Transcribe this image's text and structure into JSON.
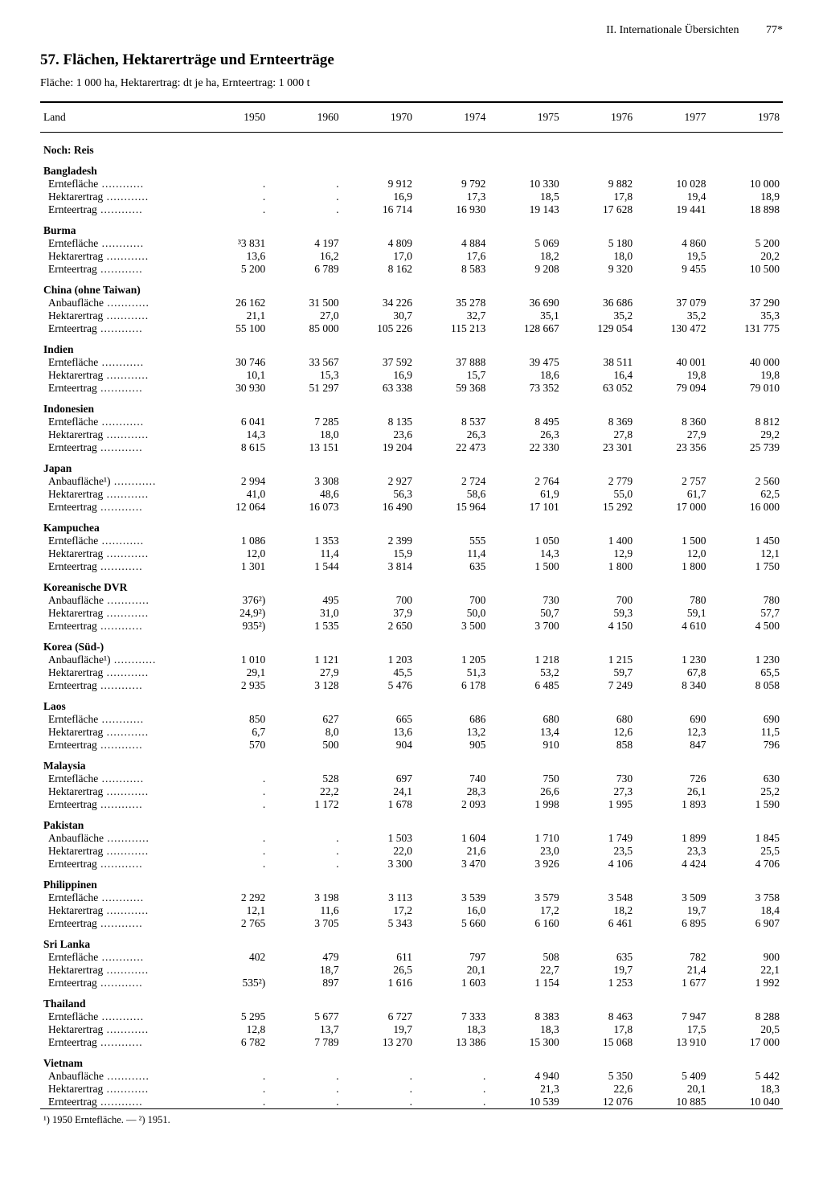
{
  "header": {
    "section": "II. Internationale Übersichten",
    "page": "77*"
  },
  "title": "57. Flächen, Hektarerträge und Ernteerträge",
  "subtitle": "Fläche: 1 000 ha, Hektarertrag: dt je ha, Ernteertrag: 1 000 t",
  "colhead": "Land",
  "years": [
    "1950",
    "1960",
    "1970",
    "1974",
    "1975",
    "1976",
    "1977",
    "1978"
  ],
  "section_label": "Noch: Reis",
  "metrics": {
    "ernteflaeche": "Erntefläche",
    "hektarertrag": "Hektarertrag",
    "ernteertrag": "Ernteertrag",
    "anbauflaeche": "Anbaufläche",
    "anbauflaeche1": "Anbaufläche¹)"
  },
  "footnote": "¹) 1950 Erntefläche. — ²) 1951.",
  "countries": [
    {
      "name": "Bangladesh",
      "rows": [
        {
          "m": "ernteflaeche",
          "v": [
            ".",
            ".",
            "9 912",
            "9 792",
            "10 330",
            "9 882",
            "10 028",
            "10 000"
          ]
        },
        {
          "m": "hektarertrag",
          "v": [
            ".",
            ".",
            "16,9",
            "17,3",
            "18,5",
            "17,8",
            "19,4",
            "18,9"
          ]
        },
        {
          "m": "ernteertrag",
          "v": [
            ".",
            ".",
            "16 714",
            "16 930",
            "19 143",
            "17 628",
            "19 441",
            "18 898"
          ]
        }
      ]
    },
    {
      "name": "Burma",
      "rows": [
        {
          "m": "ernteflaeche",
          "v": [
            "³3 831",
            "4 197",
            "4 809",
            "4 884",
            "5 069",
            "5 180",
            "4 860",
            "5 200"
          ]
        },
        {
          "m": "hektarertrag",
          "v": [
            "13,6",
            "16,2",
            "17,0",
            "17,6",
            "18,2",
            "18,0",
            "19,5",
            "20,2"
          ]
        },
        {
          "m": "ernteertrag",
          "v": [
            "5 200",
            "6 789",
            "8 162",
            "8 583",
            "9 208",
            "9 320",
            "9 455",
            "10 500"
          ]
        }
      ]
    },
    {
      "name": "China (ohne Taiwan)",
      "rows": [
        {
          "m": "anbauflaeche",
          "v": [
            "26 162",
            "31 500",
            "34 226",
            "35 278",
            "36 690",
            "36 686",
            "37 079",
            "37 290"
          ]
        },
        {
          "m": "hektarertrag",
          "v": [
            "21,1",
            "27,0",
            "30,7",
            "32,7",
            "35,1",
            "35,2",
            "35,2",
            "35,3"
          ]
        },
        {
          "m": "ernteertrag",
          "v": [
            "55 100",
            "85 000",
            "105 226",
            "115 213",
            "128 667",
            "129 054",
            "130 472",
            "131 775"
          ]
        }
      ]
    },
    {
      "name": "Indien",
      "rows": [
        {
          "m": "ernteflaeche",
          "v": [
            "30 746",
            "33 567",
            "37 592",
            "37 888",
            "39 475",
            "38 511",
            "40 001",
            "40 000"
          ]
        },
        {
          "m": "hektarertrag",
          "v": [
            "10,1",
            "15,3",
            "16,9",
            "15,7",
            "18,6",
            "16,4",
            "19,8",
            "19,8"
          ]
        },
        {
          "m": "ernteertrag",
          "v": [
            "30 930",
            "51 297",
            "63 338",
            "59 368",
            "73 352",
            "63 052",
            "79 094",
            "79 010"
          ]
        }
      ]
    },
    {
      "name": "Indonesien",
      "rows": [
        {
          "m": "ernteflaeche",
          "v": [
            "6 041",
            "7 285",
            "8 135",
            "8 537",
            "8 495",
            "8 369",
            "8 360",
            "8 812"
          ]
        },
        {
          "m": "hektarertrag",
          "v": [
            "14,3",
            "18,0",
            "23,6",
            "26,3",
            "26,3",
            "27,8",
            "27,9",
            "29,2"
          ]
        },
        {
          "m": "ernteertrag",
          "v": [
            "8 615",
            "13 151",
            "19 204",
            "22 473",
            "22 330",
            "23 301",
            "23 356",
            "25 739"
          ]
        }
      ]
    },
    {
      "name": "Japan",
      "rows": [
        {
          "m": "anbauflaeche1",
          "v": [
            "2 994",
            "3 308",
            "2 927",
            "2 724",
            "2 764",
            "2 779",
            "2 757",
            "2 560"
          ]
        },
        {
          "m": "hektarertrag",
          "v": [
            "41,0",
            "48,6",
            "56,3",
            "58,6",
            "61,9",
            "55,0",
            "61,7",
            "62,5"
          ]
        },
        {
          "m": "ernteertrag",
          "v": [
            "12 064",
            "16 073",
            "16 490",
            "15 964",
            "17 101",
            "15 292",
            "17 000",
            "16 000"
          ]
        }
      ]
    },
    {
      "name": "Kampuchea",
      "rows": [
        {
          "m": "ernteflaeche",
          "v": [
            "1 086",
            "1 353",
            "2 399",
            "555",
            "1 050",
            "1 400",
            "1 500",
            "1 450"
          ]
        },
        {
          "m": "hektarertrag",
          "v": [
            "12,0",
            "11,4",
            "15,9",
            "11,4",
            "14,3",
            "12,9",
            "12,0",
            "12,1"
          ]
        },
        {
          "m": "ernteertrag",
          "v": [
            "1 301",
            "1 544",
            "3 814",
            "635",
            "1 500",
            "1 800",
            "1 800",
            "1 750"
          ]
        }
      ]
    },
    {
      "name": "Koreanische DVR",
      "rows": [
        {
          "m": "anbauflaeche",
          "v": [
            "376²)",
            "495",
            "700",
            "700",
            "730",
            "700",
            "780",
            "780"
          ]
        },
        {
          "m": "hektarertrag",
          "v": [
            "24,9²)",
            "31,0",
            "37,9",
            "50,0",
            "50,7",
            "59,3",
            "59,1",
            "57,7"
          ]
        },
        {
          "m": "ernteertrag",
          "v": [
            "935²)",
            "1 535",
            "2 650",
            "3 500",
            "3 700",
            "4 150",
            "4 610",
            "4 500"
          ]
        }
      ]
    },
    {
      "name": "Korea (Süd-)",
      "rows": [
        {
          "m": "anbauflaeche1",
          "v": [
            "1 010",
            "1 121",
            "1 203",
            "1 205",
            "1 218",
            "1 215",
            "1 230",
            "1 230"
          ]
        },
        {
          "m": "hektarertrag",
          "v": [
            "29,1",
            "27,9",
            "45,5",
            "51,3",
            "53,2",
            "59,7",
            "67,8",
            "65,5"
          ]
        },
        {
          "m": "ernteertrag",
          "v": [
            "2 935",
            "3 128",
            "5 476",
            "6 178",
            "6 485",
            "7 249",
            "8 340",
            "8 058"
          ]
        }
      ]
    },
    {
      "name": "Laos",
      "rows": [
        {
          "m": "ernteflaeche",
          "v": [
            "850",
            "627",
            "665",
            "686",
            "680",
            "680",
            "690",
            "690"
          ]
        },
        {
          "m": "hektarertrag",
          "v": [
            "6,7",
            "8,0",
            "13,6",
            "13,2",
            "13,4",
            "12,6",
            "12,3",
            "11,5"
          ]
        },
        {
          "m": "ernteertrag",
          "v": [
            "570",
            "500",
            "904",
            "905",
            "910",
            "858",
            "847",
            "796"
          ]
        }
      ]
    },
    {
      "name": "Malaysia",
      "rows": [
        {
          "m": "ernteflaeche",
          "v": [
            ".",
            "528",
            "697",
            "740",
            "750",
            "730",
            "726",
            "630"
          ]
        },
        {
          "m": "hektarertrag",
          "v": [
            ".",
            "22,2",
            "24,1",
            "28,3",
            "26,6",
            "27,3",
            "26,1",
            "25,2"
          ]
        },
        {
          "m": "ernteertrag",
          "v": [
            ".",
            "1 172",
            "1 678",
            "2 093",
            "1 998",
            "1 995",
            "1 893",
            "1 590"
          ]
        }
      ]
    },
    {
      "name": "Pakistan",
      "rows": [
        {
          "m": "anbauflaeche",
          "v": [
            ".",
            ".",
            "1 503",
            "1 604",
            "1 710",
            "1 749",
            "1 899",
            "1 845"
          ]
        },
        {
          "m": "hektarertrag",
          "v": [
            ".",
            ".",
            "22,0",
            "21,6",
            "23,0",
            "23,5",
            "23,3",
            "25,5"
          ]
        },
        {
          "m": "ernteertrag",
          "v": [
            ".",
            ".",
            "3 300",
            "3 470",
            "3 926",
            "4 106",
            "4 424",
            "4 706"
          ]
        }
      ]
    },
    {
      "name": "Philippinen",
      "rows": [
        {
          "m": "ernteflaeche",
          "v": [
            "2 292",
            "3 198",
            "3 113",
            "3 539",
            "3 579",
            "3 548",
            "3 509",
            "3 758"
          ]
        },
        {
          "m": "hektarertrag",
          "v": [
            "12,1",
            "11,6",
            "17,2",
            "16,0",
            "17,2",
            "18,2",
            "19,7",
            "18,4"
          ]
        },
        {
          "m": "ernteertrag",
          "v": [
            "2 765",
            "3 705",
            "5 343",
            "5 660",
            "6 160",
            "6 461",
            "6 895",
            "6 907"
          ]
        }
      ]
    },
    {
      "name": "Sri Lanka",
      "rows": [
        {
          "m": "ernteflaeche",
          "v": [
            "402",
            "479",
            "611",
            "797",
            "508",
            "635",
            "782",
            "900"
          ]
        },
        {
          "m": "hektarertrag",
          "v": [
            "",
            "18,7",
            "26,5",
            "20,1",
            "22,7",
            "19,7",
            "21,4",
            "22,1"
          ]
        },
        {
          "m": "ernteertrag",
          "v": [
            "535²)",
            "897",
            "1 616",
            "1 603",
            "1 154",
            "1 253",
            "1 677",
            "1 992"
          ]
        }
      ]
    },
    {
      "name": "Thailand",
      "rows": [
        {
          "m": "ernteflaeche",
          "v": [
            "5 295",
            "5 677",
            "6 727",
            "7 333",
            "8 383",
            "8 463",
            "7 947",
            "8 288"
          ]
        },
        {
          "m": "hektarertrag",
          "v": [
            "12,8",
            "13,7",
            "19,7",
            "18,3",
            "18,3",
            "17,8",
            "17,5",
            "20,5"
          ]
        },
        {
          "m": "ernteertrag",
          "v": [
            "6 782",
            "7 789",
            "13 270",
            "13 386",
            "15 300",
            "15 068",
            "13 910",
            "17 000"
          ]
        }
      ]
    },
    {
      "name": "Vietnam",
      "rows": [
        {
          "m": "anbauflaeche",
          "v": [
            ".",
            ".",
            ".",
            ".",
            "4 940",
            "5 350",
            "5 409",
            "5 442"
          ]
        },
        {
          "m": "hektarertrag",
          "v": [
            ".",
            ".",
            ".",
            ".",
            "21,3",
            "22,6",
            "20,1",
            "18,3"
          ]
        },
        {
          "m": "ernteertrag",
          "v": [
            ".",
            ".",
            ".",
            ".",
            "10 539",
            "12 076",
            "10 885",
            "10 040"
          ]
        }
      ]
    }
  ]
}
